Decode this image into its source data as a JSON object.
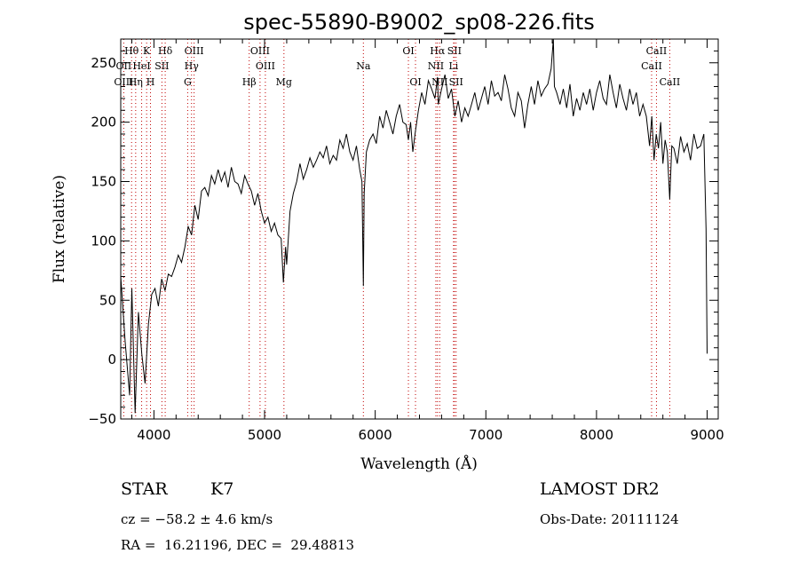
{
  "chart_data": {
    "type": "line",
    "title": "spec-55890-B9002_sp08-226.fits",
    "xlabel": "Wavelength (Å)",
    "ylabel": "Flux (relative)",
    "xlim": [
      3700,
      9100
    ],
    "ylim": [
      -50,
      270
    ],
    "xticks": [
      4000,
      5000,
      6000,
      7000,
      8000,
      9000
    ],
    "yticks": [
      -50,
      0,
      50,
      100,
      150,
      200,
      250
    ],
    "grid": false,
    "series": [
      {
        "x": [
          3700,
          3740,
          3780,
          3800,
          3830,
          3860,
          3890,
          3920,
          3950,
          3980,
          4010,
          4040,
          4070,
          4100,
          4130,
          4160,
          4190,
          4220,
          4250,
          4280,
          4310,
          4340,
          4370,
          4400,
          4430,
          4460,
          4490,
          4520,
          4550,
          4580,
          4610,
          4640,
          4670,
          4700,
          4730,
          4760,
          4790,
          4820,
          4850,
          4880,
          4910,
          4940,
          4970,
          5000,
          5030,
          5060,
          5090,
          5120,
          5150,
          5170,
          5190,
          5200,
          5230,
          5260,
          5290,
          5320,
          5350,
          5380,
          5410,
          5440,
          5470,
          5500,
          5530,
          5560,
          5590,
          5620,
          5650,
          5680,
          5710,
          5740,
          5770,
          5800,
          5830,
          5860,
          5880,
          5893,
          5900,
          5920,
          5950,
          5980,
          6010,
          6040,
          6070,
          6100,
          6130,
          6160,
          6190,
          6220,
          6250,
          6280,
          6300,
          6320,
          6340,
          6360,
          6390,
          6420,
          6450,
          6480,
          6510,
          6540,
          6563,
          6570,
          6600,
          6630,
          6660,
          6690,
          6720,
          6750,
          6780,
          6810,
          6840,
          6870,
          6900,
          6930,
          6960,
          6990,
          7020,
          7050,
          7080,
          7110,
          7140,
          7170,
          7200,
          7230,
          7260,
          7290,
          7320,
          7350,
          7380,
          7410,
          7440,
          7470,
          7500,
          7530,
          7560,
          7590,
          7610,
          7620,
          7640,
          7670,
          7700,
          7730,
          7760,
          7790,
          7820,
          7850,
          7880,
          7910,
          7940,
          7970,
          8000,
          8030,
          8060,
          8090,
          8120,
          8150,
          8180,
          8210,
          8240,
          8270,
          8300,
          8330,
          8360,
          8390,
          8420,
          8450,
          8480,
          8500,
          8520,
          8540,
          8560,
          8580,
          8600,
          8620,
          8640,
          8662,
          8680,
          8700,
          8730,
          8760,
          8790,
          8820,
          8850,
          8880,
          8910,
          8940,
          8970,
          8990,
          9000
        ],
        "y": [
          70,
          15,
          -30,
          60,
          -45,
          40,
          5,
          -20,
          30,
          55,
          60,
          45,
          68,
          58,
          72,
          70,
          78,
          88,
          82,
          95,
          112,
          105,
          130,
          118,
          142,
          145,
          138,
          155,
          148,
          160,
          150,
          158,
          145,
          162,
          150,
          148,
          140,
          155,
          148,
          142,
          130,
          140,
          125,
          115,
          120,
          108,
          115,
          105,
          102,
          65,
          95,
          80,
          125,
          140,
          150,
          165,
          152,
          160,
          170,
          162,
          168,
          175,
          170,
          180,
          165,
          172,
          168,
          185,
          178,
          190,
          175,
          168,
          180,
          160,
          150,
          62,
          140,
          175,
          185,
          190,
          182,
          205,
          195,
          210,
          200,
          190,
          205,
          215,
          200,
          198,
          185,
          200,
          175,
          190,
          210,
          225,
          215,
          235,
          228,
          220,
          238,
          215,
          228,
          240,
          220,
          228,
          205,
          218,
          200,
          212,
          205,
          215,
          225,
          210,
          220,
          230,
          215,
          235,
          222,
          225,
          218,
          240,
          228,
          212,
          205,
          225,
          218,
          195,
          215,
          230,
          215,
          235,
          222,
          228,
          232,
          245,
          270,
          230,
          225,
          215,
          228,
          212,
          232,
          205,
          220,
          210,
          225,
          215,
          228,
          210,
          225,
          235,
          220,
          215,
          240,
          225,
          212,
          232,
          220,
          210,
          228,
          215,
          225,
          205,
          215,
          205,
          180,
          205,
          168,
          190,
          178,
          200,
          165,
          185,
          175,
          135,
          180,
          178,
          165,
          188,
          175,
          182,
          168,
          190,
          178,
          180,
          190,
          110,
          5
        ]
      }
    ],
    "line_ids": [
      {
        "label": "Hθ",
        "row": 1,
        "wl": 3798
      },
      {
        "label": "K",
        "row": 1,
        "wl": 3934
      },
      {
        "label": "Hδ",
        "row": 1,
        "wl": 4102
      },
      {
        "label": "OIII",
        "row": 1,
        "wl": 4363
      },
      {
        "label": "OIII",
        "row": 1,
        "wl": 4959
      },
      {
        "label": "OI",
        "row": 1,
        "wl": 6300
      },
      {
        "label": "Hα",
        "row": 1,
        "wl": 6563
      },
      {
        "label": "SII",
        "row": 1,
        "wl": 6716
      },
      {
        "label": "CaII",
        "row": 1,
        "wl": 8542
      },
      {
        "label": "OII",
        "row": 2,
        "wl": 3727
      },
      {
        "label": "HeI",
        "row": 2,
        "wl": 3889
      },
      {
        "label": "SII",
        "row": 2,
        "wl": 4072
      },
      {
        "label": "Hγ",
        "row": 2,
        "wl": 4340
      },
      {
        "label": "OIII",
        "row": 2,
        "wl": 5007
      },
      {
        "label": "Na",
        "row": 2,
        "wl": 5893
      },
      {
        "label": "NII",
        "row": 2,
        "wl": 6548
      },
      {
        "label": "Li",
        "row": 2,
        "wl": 6708
      },
      {
        "label": "CaII",
        "row": 2,
        "wl": 8498
      },
      {
        "label": "OIII",
        "row": 3,
        "wl": 3727
      },
      {
        "label": "Hη",
        "row": 3,
        "wl": 3835
      },
      {
        "label": "H",
        "row": 3,
        "wl": 3969
      },
      {
        "label": "G",
        "row": 3,
        "wl": 4305
      },
      {
        "label": "Hβ",
        "row": 3,
        "wl": 4861
      },
      {
        "label": "Mg",
        "row": 3,
        "wl": 5175
      },
      {
        "label": "OI",
        "row": 3,
        "wl": 6364
      },
      {
        "label": "NII",
        "row": 3,
        "wl": 6583
      },
      {
        "label": "SII",
        "row": 3,
        "wl": 6731
      },
      {
        "label": "CaII",
        "row": 3,
        "wl": 8662
      }
    ]
  },
  "info": {
    "class": "STAR",
    "subclass": "K7",
    "survey": "LAMOST DR2",
    "cz": "cz = −58.2 ± 4.6 km/s",
    "obsdate": "Obs-Date: 20111124",
    "coords": "RA =  16.21196, DEC =  29.48813"
  }
}
